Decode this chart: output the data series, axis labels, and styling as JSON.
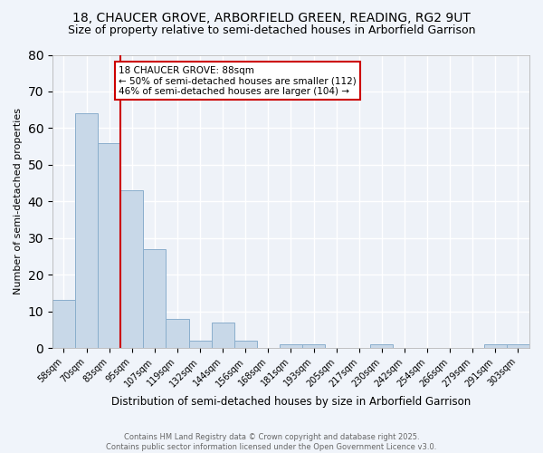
{
  "title1": "18, CHAUCER GROVE, ARBORFIELD GREEN, READING, RG2 9UT",
  "title2": "Size of property relative to semi-detached houses in Arborfield Garrison",
  "xlabel": "Distribution of semi-detached houses by size in Arborfield Garrison",
  "ylabel": "Number of semi-detached properties",
  "categories": [
    "58sqm",
    "70sqm",
    "83sqm",
    "95sqm",
    "107sqm",
    "119sqm",
    "132sqm",
    "144sqm",
    "156sqm",
    "168sqm",
    "181sqm",
    "193sqm",
    "205sqm",
    "217sqm",
    "230sqm",
    "242sqm",
    "254sqm",
    "266sqm",
    "279sqm",
    "291sqm",
    "303sqm"
  ],
  "values": [
    13,
    64,
    56,
    43,
    27,
    8,
    2,
    7,
    2,
    0,
    1,
    1,
    0,
    0,
    1,
    0,
    0,
    0,
    0,
    1,
    1
  ],
  "bar_color": "#c8d8e8",
  "bar_edge_color": "#8aaecc",
  "vline_x_index": 2.5,
  "vline_color": "#cc0000",
  "annotation_title": "18 CHAUCER GROVE: 88sqm",
  "annotation_line1": "← 50% of semi-detached houses are smaller (112)",
  "annotation_line2": "46% of semi-detached houses are larger (104) →",
  "annotation_box_facecolor": "#ffffff",
  "annotation_box_edgecolor": "#cc0000",
  "footer1": "Contains HM Land Registry data © Crown copyright and database right 2025.",
  "footer2": "Contains public sector information licensed under the Open Government Licence v3.0.",
  "ylim": [
    0,
    80
  ],
  "yticks": [
    0,
    10,
    20,
    30,
    40,
    50,
    60,
    70,
    80
  ],
  "background_color": "#f0f4fa",
  "plot_background": "#eef2f8",
  "grid_color": "#ffffff",
  "title_fontsize": 10,
  "subtitle_fontsize": 9,
  "ylabel_fontsize": 8,
  "xlabel_fontsize": 8.5,
  "tick_fontsize": 7,
  "annotation_fontsize": 7.5,
  "footer_fontsize": 6,
  "footer_color": "#666666"
}
